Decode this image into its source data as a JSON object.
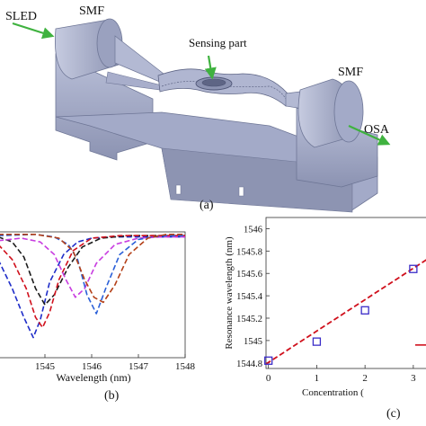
{
  "panel_a": {
    "tag": "(a)",
    "labels": {
      "sled": "SLED",
      "smf_left": "SMF",
      "sensing": "Sensing part",
      "smf_right": "SMF",
      "osa": "OSA"
    },
    "colors": {
      "device": "#9ea6c6",
      "device_dark": "#6e7696",
      "arrow": "#3fb23f"
    }
  },
  "panel_b": {
    "tag": "(b)",
    "colors": [
      "#1e2cc8",
      "#1a1a1a",
      "#d0101c",
      "#c83ce0",
      "#2a5fd8",
      "#b44018"
    ]
  },
  "panel_c": {
    "tag": "(c)",
    "colors": {
      "fit": "#d0101c",
      "marker": "#3a2cc8"
    }
  },
  "chart_data": [
    {
      "type": "line",
      "panel": "b",
      "xlabel": "Wavelength (nm)",
      "x_ticks": [
        "1545",
        "1546",
        "1547",
        "1548"
      ],
      "xlim": [
        1544.0,
        1548.0
      ],
      "grid": false,
      "series": [
        {
          "x": [
            1544.0,
            1544.3,
            1544.55,
            1544.75,
            1544.9,
            1545.1,
            1545.4,
            1545.7,
            1546.0,
            1546.5,
            1547.0,
            1548.0
          ],
          "y": [
            0.78,
            0.55,
            0.32,
            0.16,
            0.3,
            0.6,
            0.82,
            0.92,
            0.95,
            0.96,
            0.96,
            0.96
          ]
        },
        {
          "x": [
            1544.0,
            1544.3,
            1544.55,
            1544.8,
            1545.0,
            1545.2,
            1545.5,
            1545.8,
            1546.2,
            1546.8,
            1547.4,
            1548.0
          ],
          "y": [
            0.96,
            0.92,
            0.8,
            0.55,
            0.42,
            0.5,
            0.72,
            0.88,
            0.95,
            0.97,
            0.97,
            0.97
          ]
        },
        {
          "x": [
            1544.0,
            1544.3,
            1544.6,
            1544.8,
            1544.95,
            1545.1,
            1545.3,
            1545.6,
            1546.0,
            1546.6,
            1547.2,
            1548.0
          ],
          "y": [
            0.9,
            0.78,
            0.55,
            0.32,
            0.24,
            0.36,
            0.62,
            0.85,
            0.95,
            0.97,
            0.97,
            0.97
          ]
        },
        {
          "x": [
            1544.0,
            1544.5,
            1544.9,
            1545.2,
            1545.45,
            1545.65,
            1545.85,
            1546.1,
            1546.5,
            1547.0,
            1547.5,
            1548.0
          ],
          "y": [
            0.93,
            0.95,
            0.92,
            0.82,
            0.62,
            0.48,
            0.55,
            0.75,
            0.9,
            0.95,
            0.96,
            0.96
          ]
        },
        {
          "x": [
            1544.0,
            1544.8,
            1545.2,
            1545.5,
            1545.7,
            1545.9,
            1546.1,
            1546.3,
            1546.6,
            1547.0,
            1547.5,
            1548.0
          ],
          "y": [
            0.97,
            0.98,
            0.96,
            0.9,
            0.78,
            0.5,
            0.35,
            0.55,
            0.82,
            0.94,
            0.97,
            0.97
          ]
        },
        {
          "x": [
            1544.0,
            1544.8,
            1545.3,
            1545.6,
            1545.85,
            1546.05,
            1546.25,
            1546.5,
            1546.8,
            1547.2,
            1547.6,
            1548.0
          ],
          "y": [
            0.98,
            0.98,
            0.95,
            0.85,
            0.62,
            0.48,
            0.44,
            0.58,
            0.82,
            0.95,
            0.98,
            0.98
          ]
        }
      ]
    },
    {
      "type": "scatter",
      "panel": "c",
      "xlabel": "Concentration (",
      "ylabel": "Resonance wavelength (nm)",
      "xlim": [
        -0.05,
        3.3
      ],
      "ylim": [
        1544.75,
        1546.1
      ],
      "x_ticks": [
        "0",
        "1",
        "2",
        "3"
      ],
      "y_ticks": [
        "1544.8",
        "1545",
        "1545.2",
        "1545.4",
        "1545.6",
        "1545.8",
        "1546"
      ],
      "grid": false,
      "points": [
        {
          "x": 0,
          "y": 1544.82
        },
        {
          "x": 1,
          "y": 1544.99
        },
        {
          "x": 2,
          "y": 1545.27
        },
        {
          "x": 3,
          "y": 1545.64
        }
      ],
      "fit": {
        "x": [
          -0.05,
          3.3
        ],
        "y": [
          1544.79,
          1545.73
        ]
      }
    }
  ]
}
